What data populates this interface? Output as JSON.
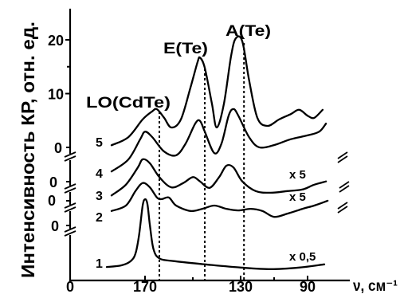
{
  "chart_data": {
    "type": "line",
    "xlabel": "ν, см⁻¹",
    "ylabel": "Интенсивность КР, отн. ед.",
    "x_reversed": true,
    "grid": false,
    "y_axis_break": true,
    "x_ticks": [
      {
        "value": 170,
        "label": "170"
      },
      {
        "value": 130,
        "label": "130"
      },
      {
        "value": 90,
        "label": "90"
      }
    ],
    "x_minor_ticks": [
      150,
      110
    ],
    "y_ticks": [
      {
        "value": 20,
        "label": "20"
      },
      {
        "value": 10,
        "label": "10"
      }
    ],
    "y_minor_ticks": [
      15
    ],
    "peaks": [
      {
        "label": "LO(CdTe)",
        "x": 164
      },
      {
        "label": "E(Te)",
        "x": 145
      },
      {
        "label": "A(Te)",
        "x": 128
      }
    ],
    "series": [
      {
        "name": "1",
        "zero_label": "0",
        "scale_label": "x 0,5",
        "x": [
          186,
          180,
          176,
          174,
          172.5,
          171,
          170,
          169,
          168,
          166.5,
          164,
          158,
          145,
          130,
          112,
          95,
          80
        ],
        "y": [
          2.5,
          2.8,
          3.6,
          5.0,
          8.4,
          13.9,
          15.1,
          14.2,
          10.4,
          5.9,
          4.1,
          3.6,
          3.0,
          2.4,
          2.1,
          2.4,
          3.0
        ]
      },
      {
        "name": "2",
        "zero_label": "0",
        "x": [
          184,
          178,
          174,
          171,
          168,
          165,
          163,
          160,
          157,
          151,
          146,
          141,
          136,
          131,
          124,
          117,
          110,
          102,
          93,
          86,
          78
        ],
        "y": [
          2.7,
          3.7,
          6.4,
          7.9,
          7.1,
          5.2,
          4.9,
          5.2,
          3.7,
          2.7,
          3.1,
          3.7,
          3.1,
          2.8,
          3.1,
          2.7,
          1.6,
          2.2,
          3.1,
          3.7,
          4.6
        ]
      },
      {
        "name": "3",
        "zero_label": "0",
        "scale_label": "x 5",
        "x": [
          184,
          178,
          173,
          171,
          168,
          164,
          159,
          154,
          150,
          147,
          143,
          139,
          136,
          133,
          129,
          121,
          112,
          102,
          93,
          86,
          79
        ],
        "y": [
          1.0,
          3.0,
          6.2,
          7.7,
          7.0,
          4.4,
          2.5,
          3.3,
          4.4,
          3.6,
          2.4,
          4.4,
          6.5,
          6.2,
          3.6,
          1.8,
          1.5,
          1.8,
          2.1,
          3.0,
          3.6
        ]
      },
      {
        "name": "4",
        "zero_label": "0",
        "scale_label": "x 5",
        "x": [
          184,
          177,
          172,
          170,
          167,
          162,
          157,
          153,
          149,
          147,
          145,
          141,
          138,
          135,
          133,
          131,
          125,
          119,
          110,
          100,
          90,
          83,
          79
        ],
        "y": [
          1.9,
          4.1,
          7.9,
          9.3,
          8.3,
          5.6,
          4.9,
          7.1,
          10.8,
          11.3,
          9.3,
          5.3,
          7.1,
          12.3,
          13.5,
          12.3,
          8.3,
          6.4,
          6.8,
          7.9,
          8.6,
          9.3,
          10.8
        ]
      },
      {
        "name": "5",
        "zero_label": "0",
        "x": [
          184,
          177,
          171,
          167,
          165,
          162,
          159,
          155,
          151,
          148,
          147,
          145,
          142,
          140,
          137,
          134,
          132,
          129,
          125,
          120,
          114,
          107,
          100,
          95,
          90,
          86,
          81
        ],
        "y": [
          0.4,
          1.9,
          5.2,
          6.7,
          7.1,
          5.5,
          3.7,
          5.2,
          11.1,
          15.9,
          16.7,
          14.8,
          8.1,
          3.7,
          8.1,
          17.0,
          20.3,
          19.7,
          12.6,
          5.5,
          4.0,
          5.2,
          6.2,
          7.0,
          5.9,
          5.5,
          7.0
        ]
      }
    ]
  }
}
